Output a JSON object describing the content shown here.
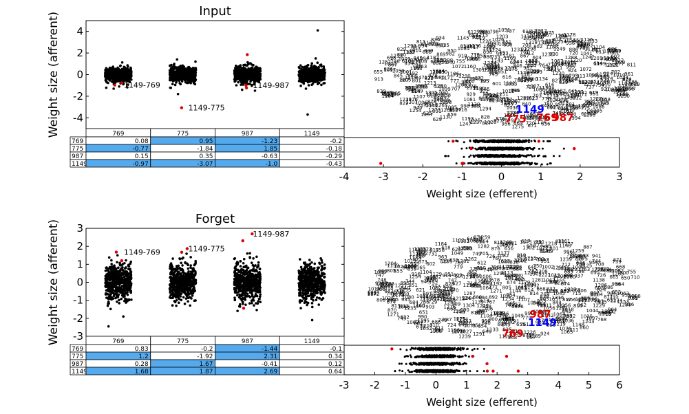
{
  "chart_data": [
    {
      "type": "scatter",
      "title": "Input",
      "ylabel": "Weight size (afferent)",
      "ylim": [
        -5,
        5
      ],
      "yticks": [
        4,
        2,
        0,
        -2,
        -4
      ],
      "categories": [
        "769",
        "775",
        "987",
        "1149"
      ],
      "outliers": [
        {
          "category": "769",
          "y": -0.77
        },
        {
          "category": "769",
          "y": -0.97
        },
        {
          "category": "775",
          "y": -3.07
        },
        {
          "category": "987",
          "y": 1.85
        },
        {
          "category": "987",
          "y": -1.0
        },
        {
          "category": "987",
          "y": -1.23
        }
      ],
      "annotations": [
        {
          "text": "1149-769",
          "category": "769",
          "y": -0.97
        },
        {
          "text": "1149-775",
          "category": "775",
          "y": -3.07
        },
        {
          "text": "1149-987",
          "category": "987",
          "y": -1.0
        }
      ],
      "table": {
        "col_labels": [
          "769",
          "775",
          "987",
          "1149"
        ],
        "row_labels": [
          "769",
          "775",
          "987",
          "1149"
        ],
        "cells": [
          [
            "0.08",
            "0.95",
            "-1.23",
            "-0.2"
          ],
          [
            "-0.77",
            "-1.84",
            "1.85",
            "-0.18"
          ],
          [
            "0.15",
            "0.35",
            "-0.63",
            "-0.29"
          ],
          [
            "-0.97",
            "-3.07",
            "-1.0",
            "-0.43"
          ]
        ],
        "highlight": [
          [
            0,
            1
          ],
          [
            0,
            2
          ],
          [
            1,
            0
          ],
          [
            1,
            2
          ],
          [
            3,
            0
          ],
          [
            3,
            1
          ],
          [
            3,
            2
          ]
        ],
        "highlight_color": "#55aaee"
      },
      "efferent": {
        "xlabel": "Weight size (efferent)",
        "xlim": [
          -4,
          3
        ],
        "xticks": [
          -4,
          -3,
          -2,
          -1,
          0,
          1,
          2,
          3
        ],
        "red_points": [
          {
            "row": 0,
            "x": 0.95
          },
          {
            "row": 0,
            "x": -1.23
          },
          {
            "row": 1,
            "x": -0.77
          },
          {
            "row": 1,
            "x": 1.85
          },
          {
            "row": 3,
            "x": -0.97
          },
          {
            "row": 3,
            "x": -3.07
          },
          {
            "row": 3,
            "x": -1.0
          }
        ]
      },
      "network": {
        "highlights": [
          {
            "text": "1149",
            "color": "#0000ff"
          },
          {
            "text": "775",
            "color": "#dd0000"
          },
          {
            "text": "769",
            "color": "#dd0000"
          },
          {
            "text": "987",
            "color": "#dd0000"
          }
        ]
      }
    },
    {
      "type": "scatter",
      "title": "Forget",
      "ylabel": "Weight size (afferent)",
      "ylim": [
        -3,
        3
      ],
      "yticks": [
        3,
        2,
        1,
        0,
        -1,
        -2,
        -3
      ],
      "categories": [
        "769",
        "775",
        "987",
        "1149"
      ],
      "outliers": [
        {
          "category": "769",
          "y": 1.2
        },
        {
          "category": "769",
          "y": 1.68
        },
        {
          "category": "775",
          "y": 1.67
        },
        {
          "category": "775",
          "y": 1.87
        },
        {
          "category": "987",
          "y": 2.31
        },
        {
          "category": "987",
          "y": 2.69
        },
        {
          "category": "987",
          "y": -1.44
        }
      ],
      "annotations": [
        {
          "text": "1149-769",
          "category": "769",
          "y": 1.68
        },
        {
          "text": "1149-775",
          "category": "775",
          "y": 1.87
        },
        {
          "text": "1149-987",
          "category": "987",
          "y": 2.69
        }
      ],
      "table": {
        "col_labels": [
          "769",
          "775",
          "987",
          "1149"
        ],
        "row_labels": [
          "769",
          "775",
          "987",
          "1149"
        ],
        "cells": [
          [
            "0.83",
            "-0.2",
            "-1.44",
            "-0.1"
          ],
          [
            "1.2",
            "-1.92",
            "2.31",
            "0.34"
          ],
          [
            "0.28",
            "1.67",
            "-0.41",
            "0.12"
          ],
          [
            "1.68",
            "1.87",
            "2.69",
            "0.64"
          ]
        ],
        "highlight": [
          [
            0,
            2
          ],
          [
            1,
            0
          ],
          [
            1,
            2
          ],
          [
            2,
            1
          ],
          [
            3,
            0
          ],
          [
            3,
            1
          ],
          [
            3,
            2
          ]
        ],
        "highlight_color": "#55aaee"
      },
      "efferent": {
        "xlabel": "Weight size (efferent)",
        "xlim": [
          -3,
          6
        ],
        "xticks": [
          -3,
          -2,
          -1,
          0,
          1,
          2,
          3,
          4,
          5,
          6
        ],
        "red_points": [
          {
            "row": 0,
            "x": -1.44
          },
          {
            "row": 1,
            "x": 1.2
          },
          {
            "row": 1,
            "x": 2.31
          },
          {
            "row": 2,
            "x": 1.67
          },
          {
            "row": 3,
            "x": 1.68
          },
          {
            "row": 3,
            "x": 1.87
          },
          {
            "row": 3,
            "x": 2.69
          }
        ]
      },
      "network": {
        "highlights": [
          {
            "text": "987",
            "color": "#dd0000"
          },
          {
            "text": "1149",
            "color": "#0000ff"
          },
          {
            "text": "769",
            "color": "#dd0000"
          }
        ]
      }
    }
  ]
}
